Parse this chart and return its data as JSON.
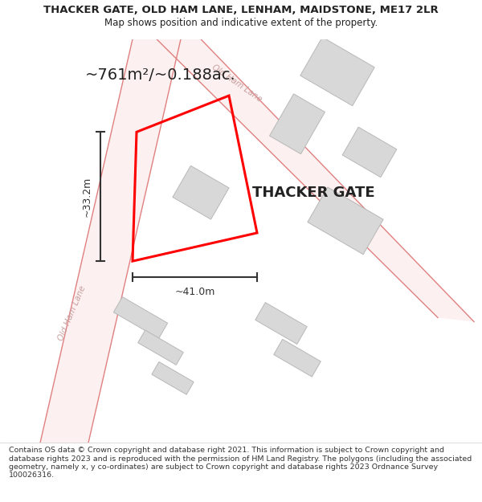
{
  "title_line1": "THACKER GATE, OLD HAM LANE, LENHAM, MAIDSTONE, ME17 2LR",
  "title_line2": "Map shows position and indicative extent of the property.",
  "footer_text": "Contains OS data © Crown copyright and database right 2021. This information is subject to Crown copyright and database rights 2023 and is reproduced with the permission of HM Land Registry. The polygons (including the associated geometry, namely x, y co-ordinates) are subject to Crown copyright and database rights 2023 Ordnance Survey 100026316.",
  "area_text": "~761m²/~0.188ac.",
  "property_name": "THACKER GATE",
  "dim_width": "~41.0m",
  "dim_height": "~33.2m",
  "road_label1": "Old Ham Lane",
  "road_label2": "Old Ham Lane",
  "map_bg": "#ffffff",
  "road_fill": "#fdf0f0",
  "road_edge_color": "#e08080",
  "building_color": "#d8d8d8",
  "building_edge": "#b8b8b8",
  "plot_color": "#ff0000",
  "text_color": "#222222",
  "dim_color": "#333333",
  "road_label_color": "#c8a0a0",
  "header_fontsize": 9.5,
  "subtitle_fontsize": 8.5,
  "area_fontsize": 14,
  "property_fontsize": 13,
  "dim_fontsize": 9,
  "road_label_fontsize": 7.5,
  "footer_fontsize": 6.8
}
